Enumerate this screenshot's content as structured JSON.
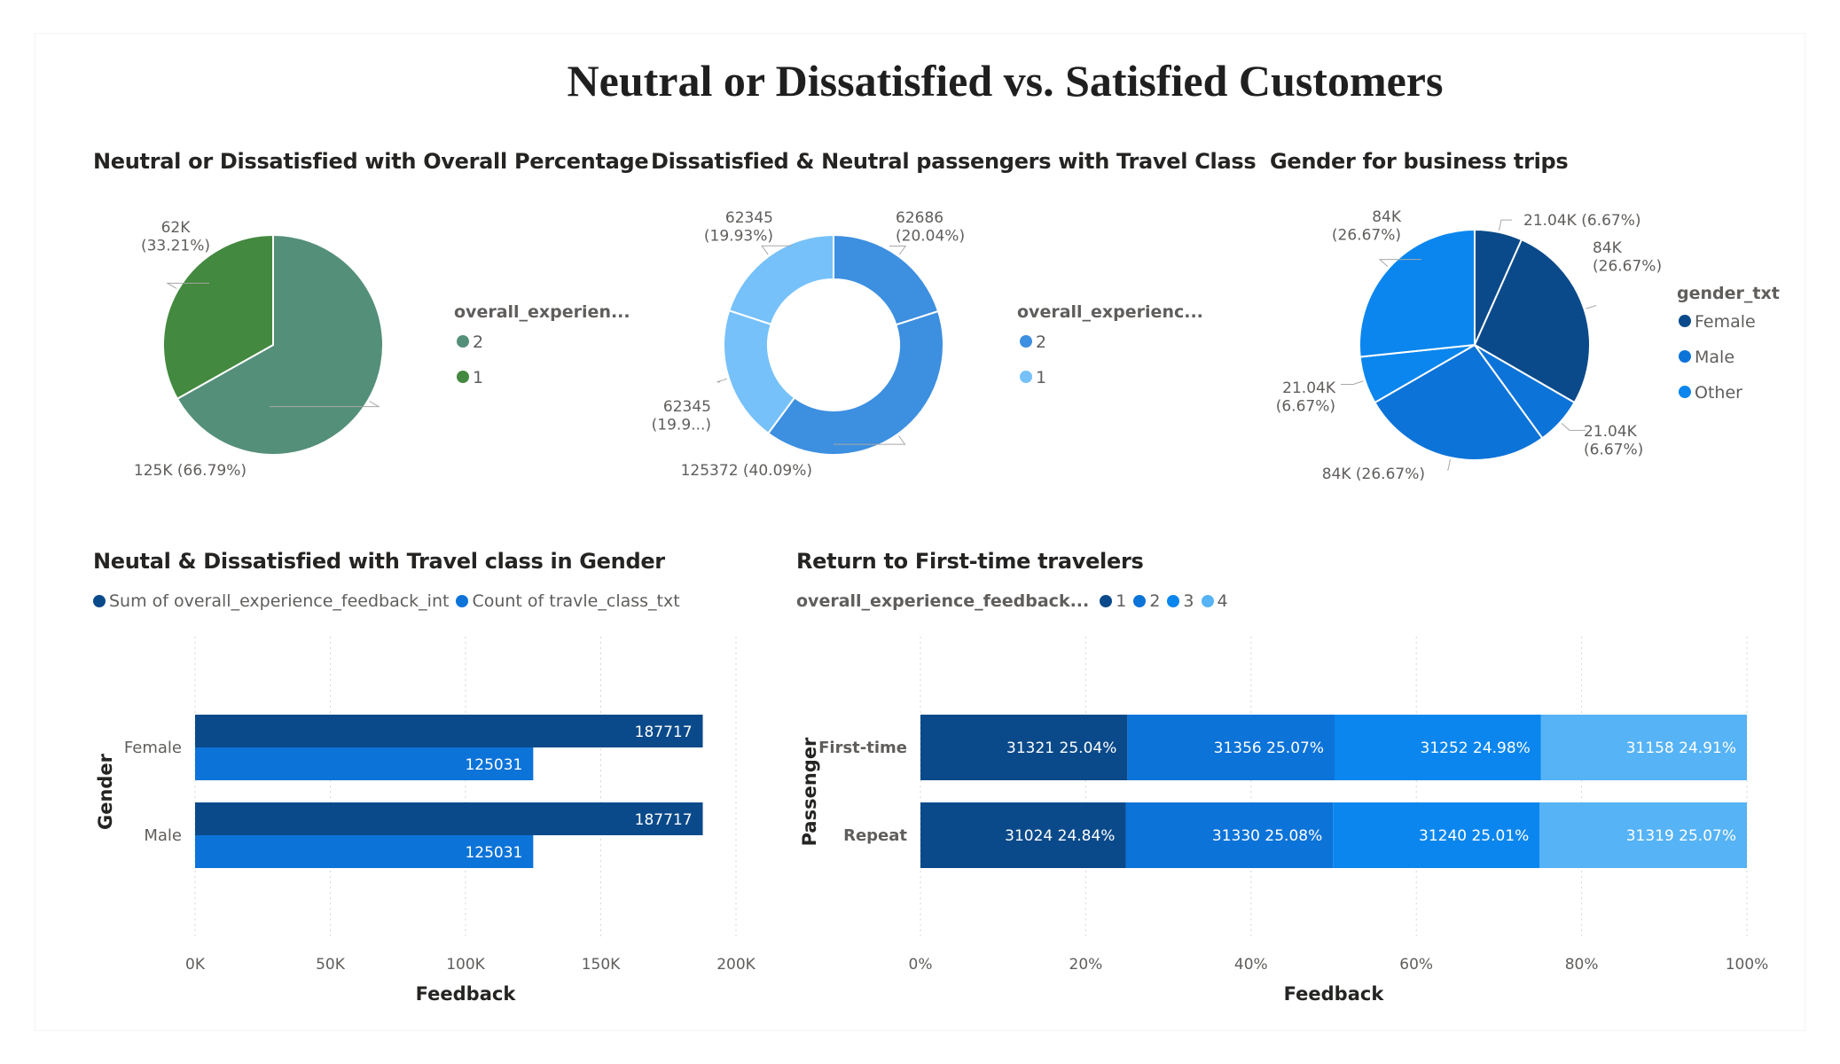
{
  "report": {
    "title": "Neutral or Dissatisfied vs. Satisfied Customers"
  },
  "colors": {
    "green_2": "#548f7a",
    "green_1": "#43893f",
    "blue_2": "#3d8fe0",
    "blue_1": "#76c1f9",
    "navy": "#0b4a8a",
    "mid_blue": "#0c73d8",
    "bright_blue": "#0a86ee",
    "light_blue": "#56b3f5"
  },
  "chart_data": [
    {
      "id": "pie1",
      "type": "pie",
      "title": "Neutral or Dissatisfied with Overall Percentage",
      "legend_title": "overall_experien...",
      "legend_position": "right",
      "slices": [
        {
          "name": "2",
          "value": 125000,
          "label": "125K (66.79%)",
          "color": "#548f7a"
        },
        {
          "name": "1",
          "value": 62000,
          "label": "62K\n(33.21%)",
          "color": "#43893f"
        }
      ]
    },
    {
      "id": "donut",
      "type": "pie",
      "variant": "donut",
      "title": "Dissatisfied & Neutral passengers with Travel Class",
      "legend_title": "overall_experienc...",
      "legend_position": "right",
      "legend": [
        "2",
        "1"
      ],
      "slices": [
        {
          "name": "2",
          "value": 62686,
          "label": "62686\n(20.04%)",
          "color": "#3d8fe0"
        },
        {
          "name": "2",
          "value": 125372,
          "label": "125372 (40.09%)",
          "color": "#3d8fe0"
        },
        {
          "name": "1",
          "value": 62345,
          "label": "62345\n(19.9...)",
          "color": "#76c1f9"
        },
        {
          "name": "1",
          "value": 62345,
          "label": "62345\n(19.93%)",
          "color": "#76c1f9"
        }
      ]
    },
    {
      "id": "pie3",
      "type": "pie",
      "title": "Gender for business trips",
      "legend_title": "gender_txt",
      "legend_position": "right",
      "legend": [
        {
          "name": "Female",
          "color": "#0b4a8a"
        },
        {
          "name": "Male",
          "color": "#0c73d8"
        },
        {
          "name": "Other",
          "color": "#0a86ee"
        }
      ],
      "slices": [
        {
          "value": 21040,
          "label": "21.04K (6.67%)",
          "color": "#0b4a8a"
        },
        {
          "value": 84000,
          "label": "84K\n(26.67%)",
          "color": "#0b4a8a"
        },
        {
          "value": 21040,
          "label": "21.04K\n(6.67%)",
          "color": "#0c73d8"
        },
        {
          "value": 84000,
          "label": "84K (26.67%)",
          "color": "#0c73d8"
        },
        {
          "value": 21040,
          "label": "21.04K\n(6.67%)",
          "color": "#0a86ee"
        },
        {
          "value": 84000,
          "label": "84K\n(26.67%)",
          "color": "#0a86ee"
        }
      ]
    },
    {
      "id": "bar1",
      "type": "bar",
      "orientation": "horizontal",
      "title": "Neutal & Dissatisfied with Travel class in Gender",
      "categories": [
        "Female",
        "Male"
      ],
      "series": [
        {
          "name": "Sum of overall_experience_feedback_int",
          "values": [
            187717,
            187717
          ],
          "color": "#0b4a8a"
        },
        {
          "name": "Count of travle_class_txt",
          "values": [
            125031,
            125031
          ],
          "color": "#0c73d8"
        }
      ],
      "xlabel": "Feedback",
      "ylabel": "Gender",
      "xlim": [
        0,
        200000
      ],
      "xticks": [
        "0K",
        "50K",
        "100K",
        "150K",
        "200K"
      ],
      "legend_position": "top-left",
      "grid": true
    },
    {
      "id": "bar2",
      "type": "bar",
      "orientation": "horizontal",
      "stacked": "100%",
      "title": "Return to First-time travelers",
      "legend_title": "overall_experience_feedback...",
      "categories": [
        "First-time",
        "Repeat"
      ],
      "series": [
        {
          "name": "1",
          "values": [
            31321,
            31024
          ],
          "labels": [
            "31321 25.04%",
            "31024 24.84%"
          ],
          "color": "#0b4a8a"
        },
        {
          "name": "2",
          "values": [
            31356,
            31330
          ],
          "labels": [
            "31356 25.07%",
            "31330 25.08%"
          ],
          "color": "#0c73d8"
        },
        {
          "name": "3",
          "values": [
            31252,
            31240
          ],
          "labels": [
            "31252 24.98%",
            "31240 25.01%"
          ],
          "color": "#0a86ee"
        },
        {
          "name": "4",
          "values": [
            31158,
            31319
          ],
          "labels": [
            "31158 24.91%",
            "31319 25.07%"
          ],
          "color": "#56b3f5"
        }
      ],
      "xlabel": "Feedback",
      "ylabel": "Passenger",
      "xticks": [
        "0%",
        "20%",
        "40%",
        "60%",
        "80%",
        "100%"
      ],
      "legend_position": "top-left",
      "grid": true
    }
  ]
}
